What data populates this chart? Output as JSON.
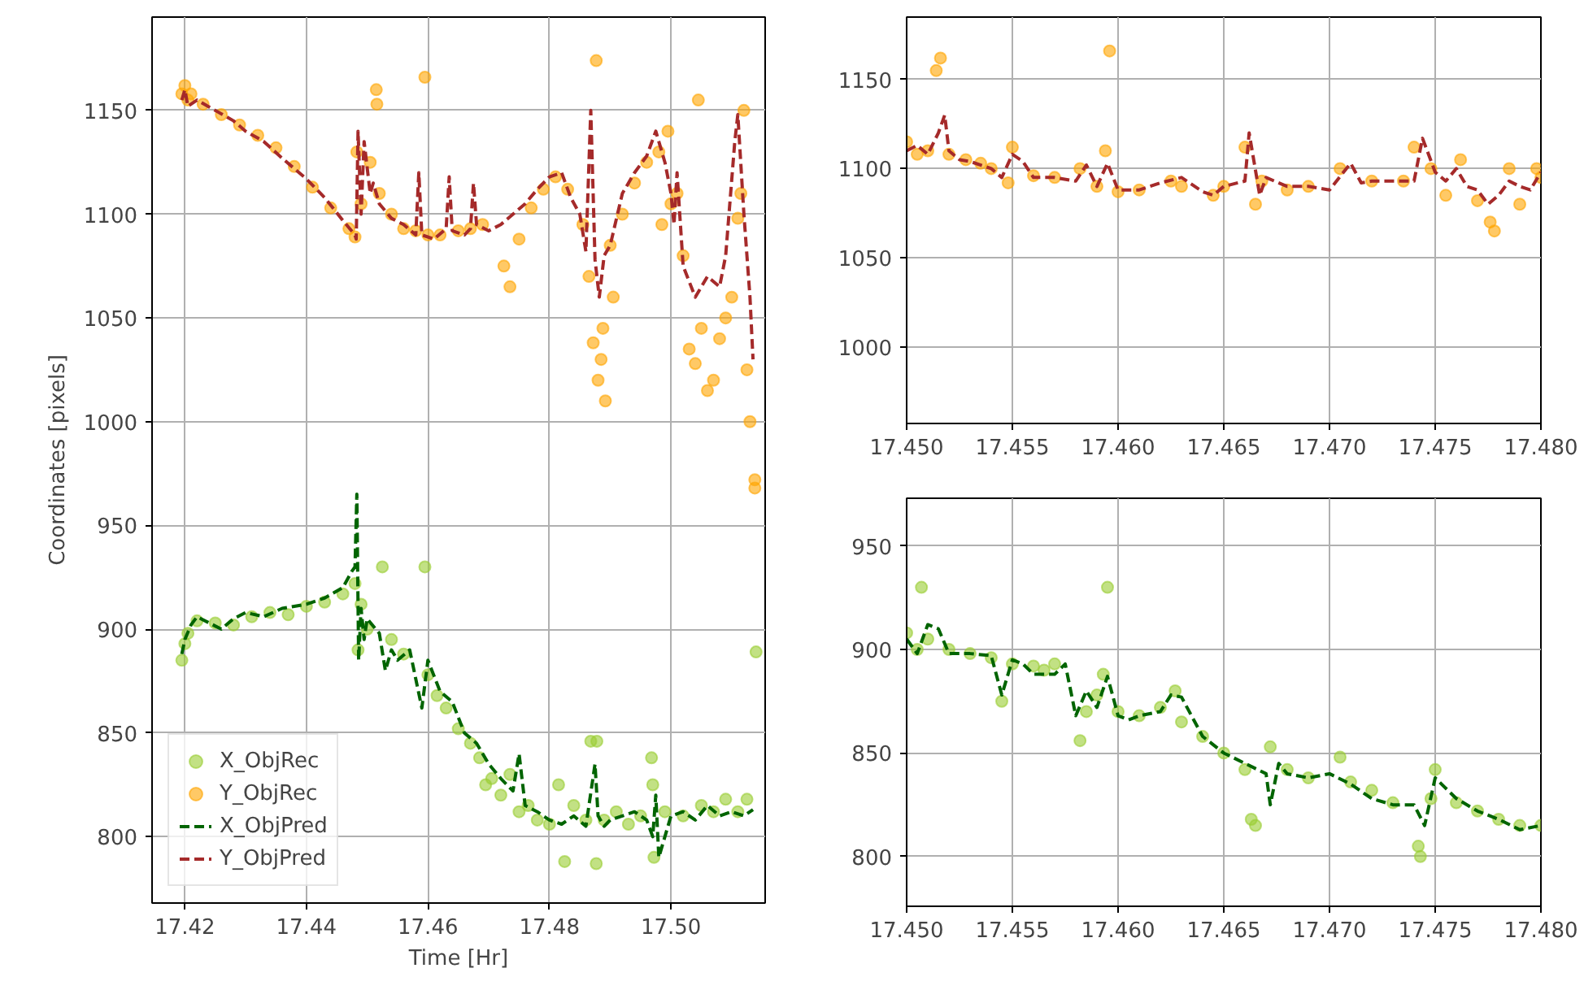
{
  "chart_data": [
    {
      "type": "scatter",
      "xlabel": "Time [Hr]",
      "ylabel": "Coordinates [pixels]",
      "xlim": [
        17.4146,
        17.5155
      ],
      "ylim": [
        768,
        1195
      ],
      "xticks": [
        17.42,
        17.44,
        17.46,
        17.48,
        {
          "value": 17.5,
          "label": "17.50"
        }
      ],
      "yticks": [
        800,
        850,
        900,
        950,
        1000,
        1050,
        1100,
        1150
      ],
      "grid": true,
      "legend": "bottom left",
      "series": [
        {
          "name": "X_ObjRec",
          "marker": "circle",
          "color": "#9acd32",
          "x": [
            17.4195,
            17.42,
            17.4205,
            17.422,
            17.425,
            17.428,
            17.431,
            17.434,
            17.437,
            17.44,
            17.443,
            17.446,
            17.448,
            17.4485,
            17.449,
            17.45,
            17.4525,
            17.454,
            17.456,
            17.4595,
            17.46,
            17.4615,
            17.463,
            17.465,
            17.467,
            17.4685,
            17.4695,
            17.4705,
            17.472,
            17.4735,
            17.475,
            17.4765,
            17.478,
            17.48,
            17.4815,
            17.4825,
            17.484,
            17.486,
            17.4868,
            17.4877,
            17.4878,
            17.489,
            17.491,
            17.493,
            17.495,
            17.4968,
            17.497,
            17.4972,
            17.499,
            17.502,
            17.505,
            17.507,
            17.509,
            17.511,
            17.5125,
            17.514
          ],
          "values": [
            885,
            893,
            898,
            904,
            903,
            902,
            906,
            908,
            907,
            911,
            913,
            917,
            922,
            890,
            912,
            900,
            930,
            895,
            888,
            930,
            878,
            868,
            862,
            852,
            845,
            838,
            825,
            828,
            820,
            830,
            812,
            815,
            808,
            806,
            825,
            788,
            815,
            808,
            846,
            787,
            846,
            808,
            812,
            806,
            810,
            838,
            825,
            790,
            812,
            810,
            815,
            812,
            818,
            812,
            818,
            889
          ]
        },
        {
          "name": "Y_ObjRec",
          "marker": "circle",
          "color": "#ffa500",
          "x": [
            17.4195,
            17.42,
            17.4205,
            17.421,
            17.423,
            17.426,
            17.429,
            17.432,
            17.435,
            17.438,
            17.441,
            17.444,
            17.447,
            17.448,
            17.4483,
            17.449,
            17.4505,
            17.4515,
            17.4516,
            17.452,
            17.454,
            17.456,
            17.458,
            17.4595,
            17.46,
            17.462,
            17.465,
            17.467,
            17.469,
            17.4725,
            17.4735,
            17.475,
            17.477,
            17.479,
            17.481,
            17.483,
            17.4855,
            17.4865,
            17.4872,
            17.4877,
            17.488,
            17.4885,
            17.4888,
            17.4892,
            17.49,
            17.4905,
            17.492,
            17.494,
            17.496,
            17.498,
            17.4985,
            17.4995,
            17.5,
            17.501,
            17.502,
            17.503,
            17.504,
            17.5045,
            17.505,
            17.506,
            17.507,
            17.508,
            17.509,
            17.51,
            17.511,
            17.5115,
            17.512,
            17.5125,
            17.513,
            17.5138,
            17.5138
          ],
          "values": [
            1158,
            1162,
            1155,
            1158,
            1153,
            1148,
            1143,
            1138,
            1132,
            1123,
            1113,
            1103,
            1093,
            1089,
            1130,
            1105,
            1125,
            1160,
            1153,
            1110,
            1100,
            1093,
            1092,
            1166,
            1090,
            1090,
            1092,
            1093,
            1095,
            1075,
            1065,
            1088,
            1103,
            1112,
            1118,
            1112,
            1095,
            1070,
            1038,
            1174,
            1020,
            1030,
            1045,
            1010,
            1085,
            1060,
            1100,
            1115,
            1125,
            1130,
            1095,
            1140,
            1105,
            1110,
            1080,
            1035,
            1028,
            1155,
            1045,
            1015,
            1020,
            1040,
            1050,
            1060,
            1098,
            1110,
            1150,
            1025,
            1000,
            968,
            972
          ]
        },
        {
          "name": "X_ObjPred",
          "type": "line",
          "line_style": "dashed",
          "color": "#006400",
          "x": [
            17.4195,
            17.42,
            17.421,
            17.422,
            17.424,
            17.426,
            17.428,
            17.43,
            17.433,
            17.436,
            17.44,
            17.443,
            17.446,
            17.4475,
            17.448,
            17.4483,
            17.4486,
            17.449,
            17.4495,
            17.45,
            17.452,
            17.453,
            17.454,
            17.455,
            17.457,
            17.459,
            17.46,
            17.462,
            17.464,
            17.466,
            17.468,
            17.47,
            17.472,
            17.474,
            17.475,
            17.476,
            17.478,
            17.48,
            17.482,
            17.484,
            17.486,
            17.4875,
            17.488,
            17.489,
            17.49,
            17.492,
            17.494,
            17.496,
            17.497,
            17.4975,
            17.498,
            17.5,
            17.502,
            17.504,
            17.506,
            17.508,
            17.51,
            17.512,
            17.5135
          ],
          "values": [
            888,
            895,
            902,
            906,
            903,
            900,
            905,
            908,
            906,
            910,
            912,
            915,
            920,
            928,
            930,
            965,
            885,
            910,
            895,
            905,
            898,
            880,
            890,
            885,
            890,
            862,
            885,
            870,
            865,
            850,
            845,
            835,
            828,
            822,
            840,
            815,
            812,
            808,
            806,
            810,
            805,
            835,
            810,
            805,
            808,
            810,
            812,
            808,
            800,
            820,
            790,
            810,
            812,
            808,
            815,
            810,
            812,
            810,
            813
          ]
        },
        {
          "name": "Y_ObjPred",
          "type": "line",
          "line_style": "dashed",
          "color": "#a52a2a",
          "x": [
            17.4195,
            17.42,
            17.4205,
            17.422,
            17.425,
            17.428,
            17.43,
            17.433,
            17.436,
            17.44,
            17.443,
            17.446,
            17.448,
            17.4482,
            17.4485,
            17.449,
            17.4495,
            17.4505,
            17.451,
            17.452,
            17.454,
            17.456,
            17.458,
            17.4585,
            17.459,
            17.461,
            17.463,
            17.4635,
            17.464,
            17.466,
            17.467,
            17.4675,
            17.468,
            17.47,
            17.472,
            17.474,
            17.476,
            17.478,
            17.48,
            17.482,
            17.4835,
            17.485,
            17.486,
            17.4868,
            17.4875,
            17.4882,
            17.489,
            17.49,
            17.492,
            17.494,
            17.496,
            17.4975,
            17.499,
            17.5,
            17.5005,
            17.501,
            17.502,
            17.504,
            17.506,
            17.508,
            17.509,
            17.5105,
            17.511,
            17.512,
            17.513,
            17.5135
          ],
          "values": [
            1155,
            1160,
            1152,
            1155,
            1150,
            1145,
            1140,
            1135,
            1127,
            1117,
            1108,
            1097,
            1090,
            1088,
            1140,
            1100,
            1135,
            1110,
            1115,
            1105,
            1098,
            1095,
            1090,
            1120,
            1090,
            1088,
            1093,
            1118,
            1092,
            1090,
            1093,
            1115,
            1095,
            1092,
            1095,
            1100,
            1105,
            1112,
            1118,
            1120,
            1108,
            1100,
            1082,
            1150,
            1078,
            1060,
            1080,
            1085,
            1110,
            1120,
            1128,
            1140,
            1125,
            1110,
            1095,
            1120,
            1075,
            1060,
            1070,
            1065,
            1080,
            1135,
            1148,
            1100,
            1060,
            1030
          ]
        }
      ]
    },
    {
      "type": "scatter",
      "xlim": [
        17.45,
        17.48
      ],
      "ylim": [
        957,
        1185
      ],
      "xticks": [
        {
          "value": 17.45,
          "label": "17.450"
        },
        {
          "value": 17.455,
          "label": "17.455"
        },
        {
          "value": 17.46,
          "label": "17.460"
        },
        {
          "value": 17.465,
          "label": "17.465"
        },
        {
          "value": 17.47,
          "label": "17.470"
        },
        {
          "value": 17.475,
          "label": "17.475"
        },
        {
          "value": 17.48,
          "label": "17.480"
        }
      ],
      "yticks": [
        1000,
        1050,
        1100,
        1150
      ],
      "grid": true,
      "series": [
        {
          "marker": "circle",
          "color": "#ffa500",
          "x": [
            17.45,
            17.4505,
            17.451,
            17.4514,
            17.4516,
            17.452,
            17.4528,
            17.4535,
            17.454,
            17.4548,
            17.455,
            17.456,
            17.457,
            17.4582,
            17.459,
            17.4594,
            17.4596,
            17.46,
            17.461,
            17.4625,
            17.463,
            17.4645,
            17.465,
            17.466,
            17.4665,
            17.4668,
            17.468,
            17.469,
            17.4705,
            17.472,
            17.4735,
            17.474,
            17.4748,
            17.4755,
            17.4762,
            17.477,
            17.4776,
            17.4778,
            17.4785,
            17.479,
            17.4798,
            17.48
          ],
          "values": [
            1115,
            1108,
            1110,
            1155,
            1162,
            1108,
            1105,
            1103,
            1100,
            1092,
            1112,
            1096,
            1095,
            1100,
            1090,
            1110,
            1166,
            1087,
            1088,
            1093,
            1090,
            1085,
            1090,
            1112,
            1080,
            1093,
            1088,
            1090,
            1100,
            1093,
            1093,
            1112,
            1100,
            1085,
            1105,
            1082,
            1070,
            1065,
            1100,
            1080,
            1100,
            1095
          ]
        },
        {
          "type": "line",
          "line_style": "dashed",
          "color": "#a52a2a",
          "x": [
            17.45,
            17.4505,
            17.451,
            17.4515,
            17.4518,
            17.452,
            17.4525,
            17.453,
            17.454,
            17.4545,
            17.455,
            17.4555,
            17.456,
            17.457,
            17.458,
            17.4585,
            17.459,
            17.4595,
            17.46,
            17.461,
            17.462,
            17.463,
            17.464,
            17.4645,
            17.465,
            17.466,
            17.4662,
            17.4667,
            17.467,
            17.468,
            17.469,
            17.47,
            17.471,
            17.4715,
            17.472,
            17.473,
            17.474,
            17.4744,
            17.475,
            17.4755,
            17.476,
            17.4765,
            17.477,
            17.4775,
            17.478,
            17.4785,
            17.479,
            17.4795,
            17.48
          ],
          "values": [
            1110,
            1113,
            1108,
            1120,
            1130,
            1110,
            1105,
            1104,
            1100,
            1095,
            1108,
            1104,
            1095,
            1095,
            1093,
            1102,
            1090,
            1103,
            1088,
            1088,
            1092,
            1095,
            1087,
            1085,
            1090,
            1093,
            1120,
            1085,
            1095,
            1090,
            1090,
            1088,
            1103,
            1092,
            1093,
            1093,
            1093,
            1117,
            1098,
            1093,
            1100,
            1090,
            1088,
            1080,
            1085,
            1093,
            1090,
            1088,
            1098
          ]
        }
      ]
    },
    {
      "type": "scatter",
      "xlim": [
        17.45,
        17.48
      ],
      "ylim": [
        776,
        973
      ],
      "xticks": [
        {
          "value": 17.45,
          "label": "17.450"
        },
        {
          "value": 17.455,
          "label": "17.455"
        },
        {
          "value": 17.46,
          "label": "17.460"
        },
        {
          "value": 17.465,
          "label": "17.465"
        },
        {
          "value": 17.47,
          "label": "17.470"
        },
        {
          "value": 17.475,
          "label": "17.475"
        },
        {
          "value": 17.48,
          "label": "17.480"
        }
      ],
      "yticks": [
        800,
        850,
        900,
        950
      ],
      "grid": true,
      "series": [
        {
          "marker": "circle",
          "color": "#9acd32",
          "x": [
            17.45,
            17.4505,
            17.4507,
            17.451,
            17.452,
            17.453,
            17.454,
            17.4545,
            17.455,
            17.456,
            17.4565,
            17.457,
            17.4582,
            17.4585,
            17.459,
            17.4593,
            17.4595,
            17.46,
            17.461,
            17.462,
            17.4627,
            17.463,
            17.464,
            17.465,
            17.466,
            17.4663,
            17.4665,
            17.4672,
            17.468,
            17.469,
            17.4705,
            17.471,
            17.472,
            17.473,
            17.4742,
            17.4743,
            17.4748,
            17.475,
            17.476,
            17.477,
            17.478,
            17.479,
            17.48
          ],
          "values": [
            908,
            900,
            930,
            905,
            900,
            898,
            896,
            875,
            893,
            892,
            890,
            893,
            856,
            870,
            878,
            888,
            930,
            870,
            868,
            872,
            880,
            865,
            858,
            850,
            842,
            818,
            815,
            853,
            842,
            838,
            848,
            836,
            832,
            826,
            805,
            800,
            828,
            842,
            826,
            822,
            818,
            815,
            815
          ]
        },
        {
          "type": "line",
          "line_style": "dashed",
          "color": "#006400",
          "x": [
            17.45,
            17.4505,
            17.451,
            17.4515,
            17.452,
            17.453,
            17.454,
            17.4545,
            17.455,
            17.4555,
            17.456,
            17.457,
            17.4575,
            17.458,
            17.4585,
            17.459,
            17.4595,
            17.46,
            17.4605,
            17.461,
            17.462,
            17.4625,
            17.463,
            17.464,
            17.465,
            17.466,
            17.467,
            17.4672,
            17.4676,
            17.468,
            17.469,
            17.47,
            17.471,
            17.472,
            17.473,
            17.474,
            17.4745,
            17.475,
            17.476,
            17.477,
            17.478,
            17.479,
            17.48
          ],
          "values": [
            905,
            898,
            912,
            910,
            898,
            898,
            897,
            878,
            895,
            893,
            888,
            888,
            893,
            868,
            880,
            872,
            887,
            868,
            866,
            868,
            870,
            878,
            877,
            858,
            850,
            845,
            840,
            825,
            845,
            840,
            838,
            840,
            835,
            828,
            825,
            825,
            815,
            838,
            828,
            822,
            818,
            813,
            815
          ]
        }
      ]
    }
  ]
}
